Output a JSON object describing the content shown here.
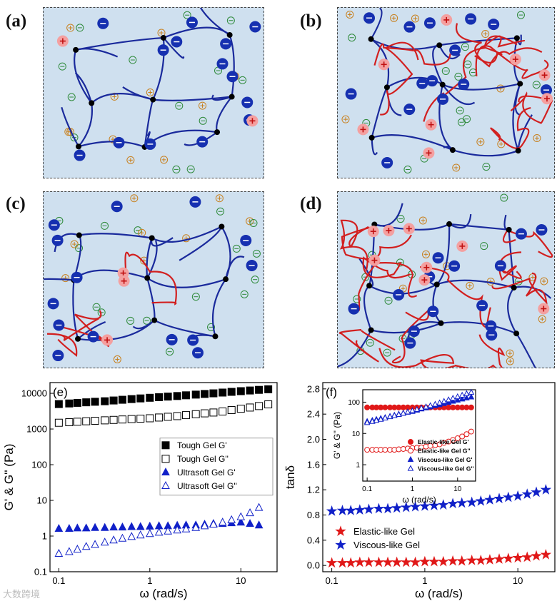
{
  "schemes": [
    {
      "label": "(a)",
      "red_chains": 0
    },
    {
      "label": "(b)",
      "red_chains": 8
    },
    {
      "label": "(c)",
      "red_chains": 3
    },
    {
      "label": "(d)",
      "red_chains": 12
    }
  ],
  "watermark": "大数跨境",
  "colors": {
    "network": "#1a2a9c",
    "polyelectrolyte": "#d21f1f",
    "background": "#cfe0ef",
    "neg_ion": "#2e8a3a",
    "pos_ion": "#c8801e"
  },
  "chart_data": [
    {
      "type": "scatter",
      "panel_label": "(e)",
      "xlabel": "ω (rad/s)",
      "ylabel": "G' & G'' (Pa)",
      "xscale": "log",
      "yscale": "log",
      "xlim": [
        0.08,
        25
      ],
      "ylim": [
        0.1,
        20000
      ],
      "xticks": [
        {
          "v": 0.1,
          "t": "0.1"
        },
        {
          "v": 1,
          "t": "1"
        },
        {
          "v": 10,
          "t": "10"
        }
      ],
      "yticks": [
        {
          "v": 0.1,
          "t": "0.1"
        },
        {
          "v": 1,
          "t": "1"
        },
        {
          "v": 10,
          "t": "10"
        },
        {
          "v": 100,
          "t": "100"
        },
        {
          "v": 1000,
          "t": "1000"
        },
        {
          "v": 10000,
          "t": "10000"
        }
      ],
      "legend_position": "middle-right",
      "series": [
        {
          "name": "Tough Gel G'",
          "marker": "square-filled",
          "color": "#000000",
          "x": [
            0.1,
            0.13,
            0.16,
            0.2,
            0.25,
            0.32,
            0.4,
            0.5,
            0.63,
            0.79,
            1,
            1.26,
            1.58,
            2,
            2.5,
            3.2,
            4,
            5,
            6.3,
            7.9,
            10,
            12.6,
            15.8,
            20
          ],
          "y": [
            5000,
            5200,
            5400,
            5600,
            5800,
            6000,
            6300,
            6600,
            6900,
            7200,
            7500,
            7800,
            8100,
            8400,
            8800,
            9200,
            9600,
            10000,
            10500,
            11000,
            11500,
            12000,
            12500,
            13000
          ]
        },
        {
          "name": "Tough Gel G''",
          "marker": "square-open",
          "color": "#000000",
          "x": [
            0.1,
            0.13,
            0.16,
            0.2,
            0.25,
            0.32,
            0.4,
            0.5,
            0.63,
            0.79,
            1,
            1.26,
            1.58,
            2,
            2.5,
            3.2,
            4,
            5,
            6.3,
            7.9,
            10,
            12.6,
            15.8,
            20
          ],
          "y": [
            1500,
            1550,
            1600,
            1650,
            1700,
            1750,
            1800,
            1850,
            1900,
            1950,
            2000,
            2100,
            2200,
            2300,
            2450,
            2600,
            2750,
            2900,
            3100,
            3400,
            3700,
            4000,
            4400,
            4900
          ]
        },
        {
          "name": "Ultrasoft Gel G'",
          "marker": "triangle-filled",
          "color": "#1020c8",
          "x": [
            0.1,
            0.13,
            0.16,
            0.2,
            0.25,
            0.32,
            0.4,
            0.5,
            0.63,
            0.79,
            1,
            1.26,
            1.58,
            2,
            2.5,
            3.2,
            4,
            5,
            6.3,
            7.9,
            10,
            12.6,
            15.8
          ],
          "y": [
            1.6,
            1.6,
            1.65,
            1.65,
            1.7,
            1.7,
            1.75,
            1.75,
            1.8,
            1.8,
            1.85,
            1.9,
            1.9,
            1.95,
            2.0,
            2.0,
            2.1,
            2.2,
            2.2,
            2.3,
            2.4,
            2.2,
            2.0
          ]
        },
        {
          "name": "Ultrasoft Gel G''",
          "marker": "triangle-open",
          "color": "#1020c8",
          "x": [
            0.1,
            0.13,
            0.16,
            0.2,
            0.25,
            0.32,
            0.4,
            0.5,
            0.63,
            0.79,
            1,
            1.26,
            1.58,
            2,
            2.5,
            3.2,
            4,
            5,
            6.3,
            7.9,
            10,
            12.6,
            15.8
          ],
          "y": [
            0.32,
            0.36,
            0.42,
            0.5,
            0.57,
            0.66,
            0.76,
            0.85,
            0.95,
            1.05,
            1.15,
            1.25,
            1.35,
            1.45,
            1.55,
            1.7,
            1.9,
            2.1,
            2.4,
            2.8,
            3.4,
            4.4,
            6.2
          ]
        }
      ]
    },
    {
      "type": "scatter",
      "panel_label": "(f)",
      "xlabel": "ω (rad/s)",
      "ylabel": "tanδ",
      "xscale": "log",
      "yscale": "linear",
      "xlim": [
        0.08,
        25
      ],
      "ylim": [
        -0.1,
        2.9
      ],
      "xticks": [
        {
          "v": 0.1,
          "t": "0.1"
        },
        {
          "v": 1,
          "t": "1"
        },
        {
          "v": 10,
          "t": "10"
        }
      ],
      "yticks": [
        {
          "v": 0,
          "t": "0.0"
        },
        {
          "v": 0.4,
          "t": "0.4"
        },
        {
          "v": 0.8,
          "t": "0.8"
        },
        {
          "v": 1.2,
          "t": "1.2"
        },
        {
          "v": 1.6,
          "t": "1.6"
        },
        {
          "v": 2.0,
          "t": "2.0"
        },
        {
          "v": 2.4,
          "t": "2.4"
        },
        {
          "v": 2.8,
          "t": "2.8"
        }
      ],
      "legend_position": "lower-left",
      "series": [
        {
          "name": "Elastic-like Gel",
          "marker": "star-filled",
          "color": "#e01818",
          "x": [
            0.1,
            0.13,
            0.16,
            0.2,
            0.25,
            0.32,
            0.4,
            0.5,
            0.63,
            0.79,
            1,
            1.26,
            1.58,
            2,
            2.5,
            3.2,
            4,
            5,
            6.3,
            7.9,
            10,
            12.6,
            15.8,
            20
          ],
          "y": [
            0.04,
            0.04,
            0.04,
            0.05,
            0.05,
            0.05,
            0.05,
            0.05,
            0.05,
            0.05,
            0.06,
            0.06,
            0.06,
            0.07,
            0.07,
            0.08,
            0.08,
            0.09,
            0.1,
            0.11,
            0.12,
            0.13,
            0.15,
            0.17
          ]
        },
        {
          "name": "Viscous-like Gel",
          "marker": "star-filled",
          "color": "#1020c8",
          "x": [
            0.1,
            0.13,
            0.16,
            0.2,
            0.25,
            0.32,
            0.4,
            0.5,
            0.63,
            0.79,
            1,
            1.26,
            1.58,
            2,
            2.5,
            3.2,
            4,
            5,
            6.3,
            7.9,
            10,
            12.6,
            15.8,
            20
          ],
          "y": [
            0.86,
            0.87,
            0.87,
            0.88,
            0.89,
            0.9,
            0.9,
            0.91,
            0.92,
            0.93,
            0.94,
            0.95,
            0.96,
            0.98,
            0.99,
            1.0,
            1.02,
            1.04,
            1.06,
            1.08,
            1.1,
            1.13,
            1.16,
            1.2
          ]
        }
      ]
    },
    {
      "type": "scatter",
      "panel_label": "",
      "inset": true,
      "xlabel": "ω (rad/s)",
      "ylabel": "G' & G'' (Pa)",
      "xscale": "log",
      "yscale": "log",
      "xlim": [
        0.08,
        25
      ],
      "ylim": [
        0.3,
        250
      ],
      "xticks": [
        {
          "v": 0.1,
          "t": "0.1"
        },
        {
          "v": 1,
          "t": "1"
        },
        {
          "v": 10,
          "t": "10"
        }
      ],
      "yticks": [
        {
          "v": 1,
          "t": "1"
        },
        {
          "v": 10,
          "t": "10"
        },
        {
          "v": 100,
          "t": "100"
        }
      ],
      "legend_position": "bottom-right",
      "series": [
        {
          "name": "Elastic-like Gel G'",
          "marker": "circle-filled",
          "color": "#e01818",
          "x": [
            0.1,
            0.13,
            0.16,
            0.2,
            0.25,
            0.32,
            0.4,
            0.5,
            0.63,
            0.79,
            1,
            1.26,
            1.58,
            2,
            2.5,
            3.2,
            4,
            5,
            6.3,
            7.9,
            10,
            12.6,
            15.8,
            20
          ],
          "y": [
            68,
            68,
            68,
            68,
            68,
            68,
            68,
            68,
            68,
            68,
            68,
            68,
            68,
            68,
            68,
            68,
            68,
            68,
            68,
            68,
            68,
            68,
            68,
            68
          ]
        },
        {
          "name": "Elastic-like Gel G''",
          "marker": "circle-open",
          "color": "#e01818",
          "x": [
            0.1,
            0.13,
            0.16,
            0.2,
            0.25,
            0.32,
            0.4,
            0.5,
            0.63,
            0.79,
            1,
            1.26,
            1.58,
            2,
            2.5,
            3.2,
            4,
            5,
            6.3,
            7.9,
            10,
            12.6,
            15.8,
            20
          ],
          "y": [
            3.0,
            3.0,
            3.0,
            3.0,
            3.0,
            3.0,
            3.0,
            3.1,
            3.2,
            3.3,
            3.4,
            3.5,
            3.6,
            3.8,
            4.0,
            4.2,
            4.5,
            5.0,
            5.5,
            6.2,
            7.0,
            8.0,
            9.5,
            11.5
          ]
        },
        {
          "name": "Viscous-like Gel G'",
          "marker": "triangle-filled",
          "color": "#1020c8",
          "x": [
            0.1,
            0.13,
            0.16,
            0.2,
            0.25,
            0.32,
            0.4,
            0.5,
            0.63,
            0.79,
            1,
            1.26,
            1.58,
            2,
            2.5,
            3.2,
            4,
            5,
            6.3,
            7.9,
            10,
            12.6,
            15.8,
            20
          ],
          "y": [
            24,
            26,
            28,
            30,
            32,
            35,
            38,
            41,
            44,
            47,
            50,
            55,
            60,
            65,
            70,
            76,
            82,
            90,
            98,
            106,
            115,
            125,
            135,
            145
          ]
        },
        {
          "name": "Viscous-like Gel G''",
          "marker": "triangle-open",
          "color": "#1020c8",
          "x": [
            0.1,
            0.13,
            0.16,
            0.2,
            0.25,
            0.32,
            0.4,
            0.5,
            0.63,
            0.79,
            1,
            1.26,
            1.58,
            2,
            2.5,
            3.2,
            4,
            5,
            6.3,
            7.9,
            10,
            12.6,
            15.8,
            20
          ],
          "y": [
            22,
            24,
            26,
            28,
            31,
            34,
            37,
            40,
            44,
            48,
            53,
            58,
            64,
            70,
            77,
            85,
            94,
            105,
            118,
            132,
            148,
            165,
            185,
            205
          ]
        }
      ]
    }
  ]
}
